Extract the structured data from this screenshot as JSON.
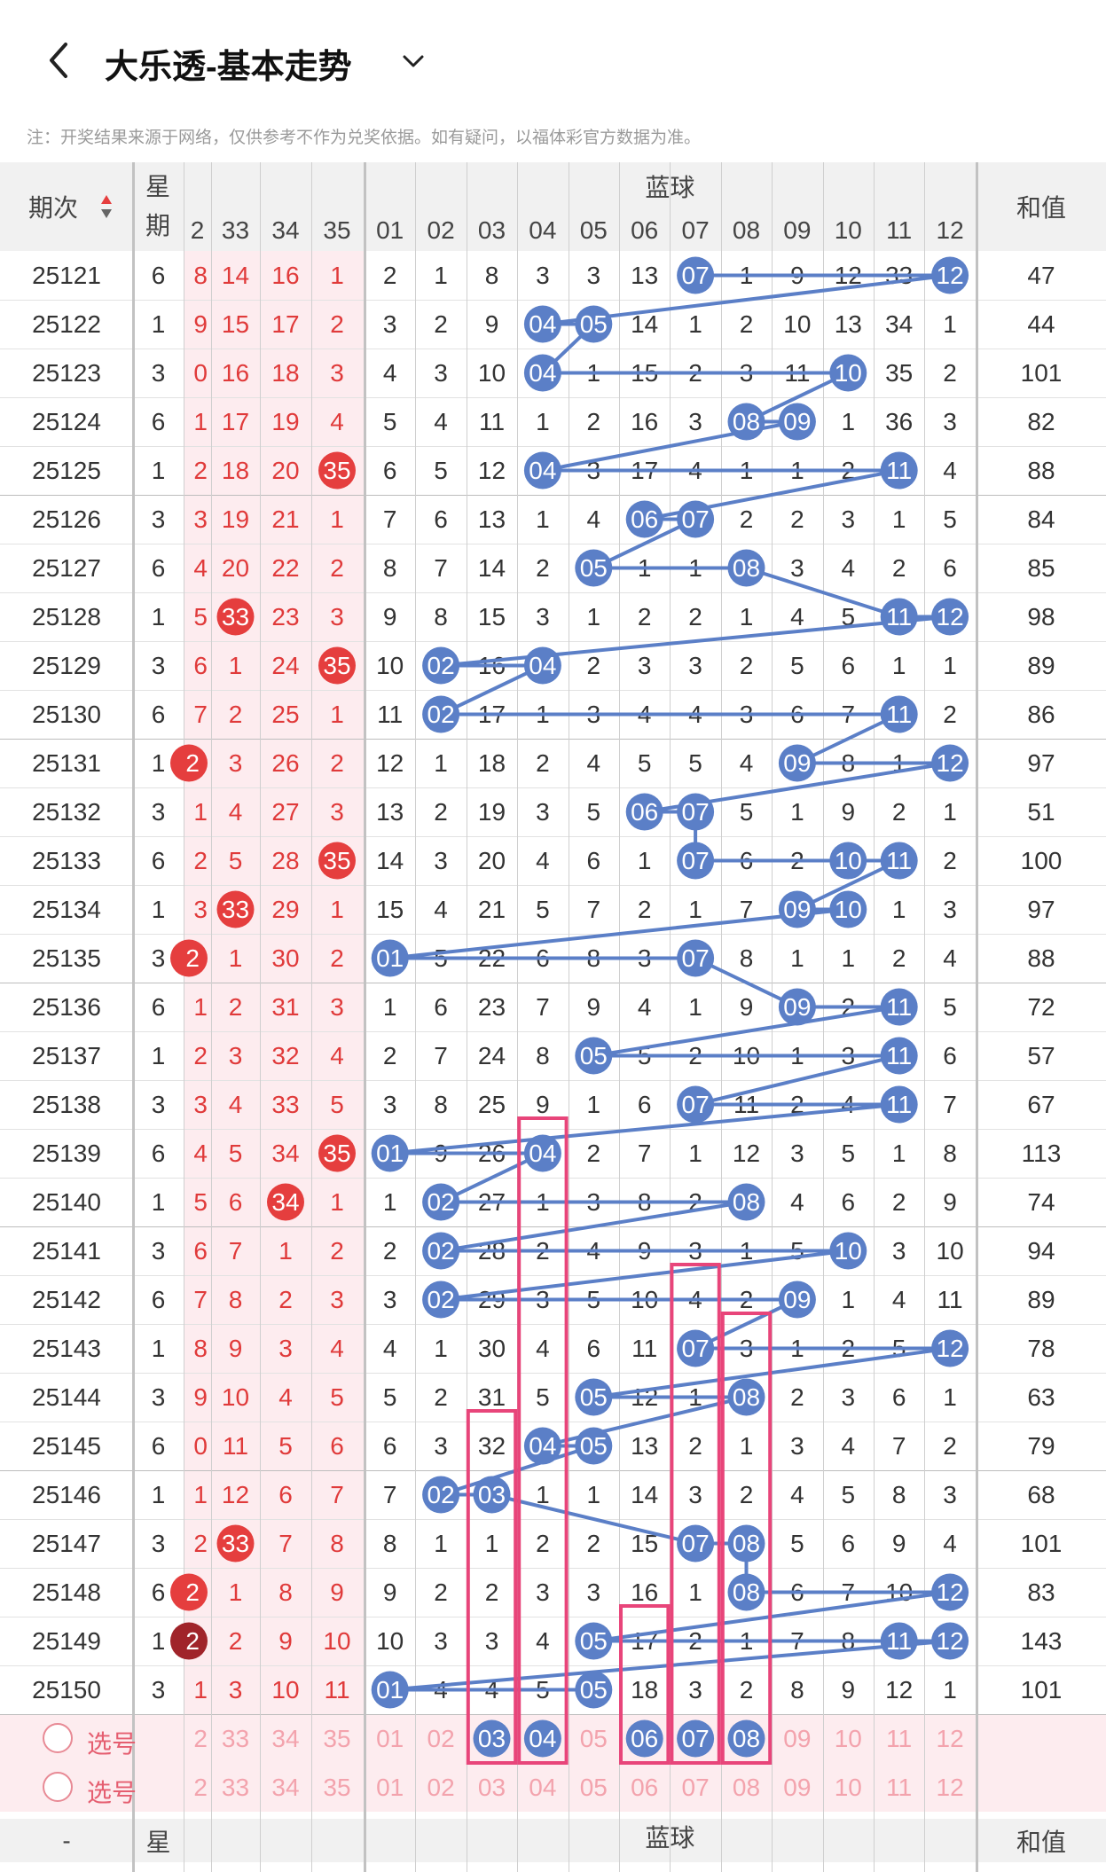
{
  "header": {
    "title": "大乐透-基本走势"
  },
  "note": "注：开奖结果来源于网络，仅供参考不作为兑奖依据。如有疑问，以福体彩官方数据为准。",
  "table": {
    "issue_header": "期次",
    "week_header": "星期",
    "blue_header": "蓝球",
    "sum_header": "和值",
    "front_cols": [
      "2",
      "33",
      "34",
      "35"
    ],
    "blue_cols": [
      "01",
      "02",
      "03",
      "04",
      "05",
      "06",
      "07",
      "08",
      "09",
      "10",
      "11",
      "12"
    ],
    "rows": [
      {
        "issue": "25121",
        "week": "6",
        "front": [
          "8",
          "14",
          "16",
          "1"
        ],
        "blue": [
          "2",
          "1",
          "8",
          "3",
          "3",
          "13",
          "07",
          "1",
          "9",
          "12",
          "33",
          "12"
        ],
        "sum": "47"
      },
      {
        "issue": "25122",
        "week": "1",
        "front": [
          "9",
          "15",
          "17",
          "2"
        ],
        "blue": [
          "3",
          "2",
          "9",
          "04",
          "05",
          "14",
          "1",
          "2",
          "10",
          "13",
          "34",
          "1"
        ],
        "sum": "44"
      },
      {
        "issue": "25123",
        "week": "3",
        "front": [
          "0",
          "16",
          "18",
          "3"
        ],
        "blue": [
          "4",
          "3",
          "10",
          "04",
          "1",
          "15",
          "2",
          "3",
          "11",
          "10",
          "35",
          "2"
        ],
        "sum": "101"
      },
      {
        "issue": "25124",
        "week": "6",
        "front": [
          "1",
          "17",
          "19",
          "4"
        ],
        "blue": [
          "5",
          "4",
          "11",
          "1",
          "2",
          "16",
          "3",
          "08",
          "09",
          "1",
          "36",
          "3"
        ],
        "sum": "82"
      },
      {
        "issue": "25125",
        "week": "1",
        "front": [
          "2",
          "18",
          "20",
          "35"
        ],
        "blue": [
          "6",
          "5",
          "12",
          "04",
          "3",
          "17",
          "4",
          "1",
          "1",
          "2",
          "11",
          "4"
        ],
        "sum": "88"
      },
      {
        "issue": "25126",
        "week": "3",
        "front": [
          "3",
          "19",
          "21",
          "1"
        ],
        "blue": [
          "7",
          "6",
          "13",
          "1",
          "4",
          "06",
          "07",
          "2",
          "2",
          "3",
          "1",
          "5"
        ],
        "sum": "84"
      },
      {
        "issue": "25127",
        "week": "6",
        "front": [
          "4",
          "20",
          "22",
          "2"
        ],
        "blue": [
          "8",
          "7",
          "14",
          "2",
          "05",
          "1",
          "1",
          "08",
          "3",
          "4",
          "2",
          "6"
        ],
        "sum": "85"
      },
      {
        "issue": "25128",
        "week": "1",
        "front": [
          "5",
          "33",
          "23",
          "3"
        ],
        "blue": [
          "9",
          "8",
          "15",
          "3",
          "1",
          "2",
          "2",
          "1",
          "4",
          "5",
          "11",
          "12"
        ],
        "sum": "98"
      },
      {
        "issue": "25129",
        "week": "3",
        "front": [
          "6",
          "1",
          "24",
          "35"
        ],
        "blue": [
          "10",
          "02",
          "16",
          "04",
          "2",
          "3",
          "3",
          "2",
          "5",
          "6",
          "1",
          "1"
        ],
        "sum": "89"
      },
      {
        "issue": "25130",
        "week": "6",
        "front": [
          "7",
          "2",
          "25",
          "1"
        ],
        "blue": [
          "11",
          "02",
          "17",
          "1",
          "3",
          "4",
          "4",
          "3",
          "6",
          "7",
          "11",
          "2"
        ],
        "sum": "86"
      },
      {
        "issue": "25131",
        "week": "1",
        "front": [
          "2",
          "3",
          "26",
          "2"
        ],
        "blue": [
          "12",
          "1",
          "18",
          "2",
          "4",
          "5",
          "5",
          "4",
          "09",
          "8",
          "1",
          "12"
        ],
        "sum": "97"
      },
      {
        "issue": "25132",
        "week": "3",
        "front": [
          "1",
          "4",
          "27",
          "3"
        ],
        "blue": [
          "13",
          "2",
          "19",
          "3",
          "5",
          "06",
          "07",
          "5",
          "1",
          "9",
          "2",
          "1"
        ],
        "sum": "51"
      },
      {
        "issue": "25133",
        "week": "6",
        "front": [
          "2",
          "5",
          "28",
          "35"
        ],
        "blue": [
          "14",
          "3",
          "20",
          "4",
          "6",
          "1",
          "07",
          "6",
          "2",
          "10",
          "11",
          "2"
        ],
        "sum": "100"
      },
      {
        "issue": "25134",
        "week": "1",
        "front": [
          "3",
          "33",
          "29",
          "1"
        ],
        "blue": [
          "15",
          "4",
          "21",
          "5",
          "7",
          "2",
          "1",
          "7",
          "09",
          "10",
          "1",
          "3"
        ],
        "sum": "97"
      },
      {
        "issue": "25135",
        "week": "3",
        "front": [
          "2",
          "1",
          "30",
          "2"
        ],
        "blue": [
          "01",
          "5",
          "22",
          "6",
          "8",
          "3",
          "07",
          "8",
          "1",
          "1",
          "2",
          "4"
        ],
        "sum": "88"
      },
      {
        "issue": "25136",
        "week": "6",
        "front": [
          "1",
          "2",
          "31",
          "3"
        ],
        "blue": [
          "1",
          "6",
          "23",
          "7",
          "9",
          "4",
          "1",
          "9",
          "09",
          "2",
          "11",
          "5"
        ],
        "sum": "72"
      },
      {
        "issue": "25137",
        "week": "1",
        "front": [
          "2",
          "3",
          "32",
          "4"
        ],
        "blue": [
          "2",
          "7",
          "24",
          "8",
          "05",
          "5",
          "2",
          "10",
          "1",
          "3",
          "11",
          "6"
        ],
        "sum": "57"
      },
      {
        "issue": "25138",
        "week": "3",
        "front": [
          "3",
          "4",
          "33",
          "5"
        ],
        "blue": [
          "3",
          "8",
          "25",
          "9",
          "1",
          "6",
          "07",
          "11",
          "2",
          "4",
          "11",
          "7"
        ],
        "sum": "67"
      },
      {
        "issue": "25139",
        "week": "6",
        "front": [
          "4",
          "5",
          "34",
          "35"
        ],
        "blue": [
          "01",
          "9",
          "26",
          "04",
          "2",
          "7",
          "1",
          "12",
          "3",
          "5",
          "1",
          "8"
        ],
        "sum": "113"
      },
      {
        "issue": "25140",
        "week": "1",
        "front": [
          "5",
          "6",
          "34",
          "1"
        ],
        "blue": [
          "1",
          "02",
          "27",
          "1",
          "3",
          "8",
          "2",
          "08",
          "4",
          "6",
          "2",
          "9"
        ],
        "sum": "74"
      },
      {
        "issue": "25141",
        "week": "3",
        "front": [
          "6",
          "7",
          "1",
          "2"
        ],
        "blue": [
          "2",
          "02",
          "28",
          "2",
          "4",
          "9",
          "3",
          "1",
          "5",
          "10",
          "3",
          "10"
        ],
        "sum": "94"
      },
      {
        "issue": "25142",
        "week": "6",
        "front": [
          "7",
          "8",
          "2",
          "3"
        ],
        "blue": [
          "3",
          "02",
          "29",
          "3",
          "5",
          "10",
          "4",
          "2",
          "09",
          "1",
          "4",
          "11"
        ],
        "sum": "89"
      },
      {
        "issue": "25143",
        "week": "1",
        "front": [
          "8",
          "9",
          "3",
          "4"
        ],
        "blue": [
          "4",
          "1",
          "30",
          "4",
          "6",
          "11",
          "07",
          "3",
          "1",
          "2",
          "5",
          "12"
        ],
        "sum": "78"
      },
      {
        "issue": "25144",
        "week": "3",
        "front": [
          "9",
          "10",
          "4",
          "5"
        ],
        "blue": [
          "5",
          "2",
          "31",
          "5",
          "05",
          "12",
          "1",
          "08",
          "2",
          "3",
          "6",
          "1"
        ],
        "sum": "63"
      },
      {
        "issue": "25145",
        "week": "6",
        "front": [
          "0",
          "11",
          "5",
          "6"
        ],
        "blue": [
          "6",
          "3",
          "32",
          "04",
          "05",
          "13",
          "2",
          "1",
          "3",
          "4",
          "7",
          "2"
        ],
        "sum": "79"
      },
      {
        "issue": "25146",
        "week": "1",
        "front": [
          "1",
          "12",
          "6",
          "7"
        ],
        "blue": [
          "7",
          "02",
          "03",
          "1",
          "1",
          "14",
          "3",
          "2",
          "4",
          "5",
          "8",
          "3"
        ],
        "sum": "68"
      },
      {
        "issue": "25147",
        "week": "3",
        "front": [
          "2",
          "33",
          "7",
          "8"
        ],
        "blue": [
          "8",
          "1",
          "1",
          "2",
          "2",
          "15",
          "07",
          "08",
          "5",
          "6",
          "9",
          "4"
        ],
        "sum": "101"
      },
      {
        "issue": "25148",
        "week": "6",
        "front": [
          "2",
          "1",
          "8",
          "9"
        ],
        "blue": [
          "9",
          "2",
          "2",
          "3",
          "3",
          "16",
          "1",
          "08",
          "6",
          "7",
          "10",
          "12"
        ],
        "sum": "83"
      },
      {
        "issue": "25149",
        "week": "1",
        "front": [
          "2",
          "2",
          "9",
          "10"
        ],
        "blue": [
          "10",
          "3",
          "3",
          "4",
          "05",
          "17",
          "2",
          "1",
          "7",
          "8",
          "11",
          "12"
        ],
        "sum": "143"
      },
      {
        "issue": "25150",
        "week": "3",
        "front": [
          "1",
          "3",
          "10",
          "11"
        ],
        "blue": [
          "01",
          "4",
          "4",
          "5",
          "05",
          "18",
          "3",
          "2",
          "8",
          "9",
          "12",
          "1"
        ],
        "sum": "101"
      }
    ],
    "select_rows": [
      {
        "label": "选号",
        "front": [
          "2",
          "33",
          "34",
          "35"
        ],
        "blue": [
          "01",
          "02",
          "03",
          "04",
          "05",
          "06",
          "07",
          "08",
          "09",
          "10",
          "11",
          "12"
        ],
        "selected": [
          "03",
          "04",
          "06",
          "07",
          "08"
        ]
      },
      {
        "label": "选号",
        "front": [
          "2",
          "33",
          "34",
          "35"
        ],
        "blue": [
          "01",
          "02",
          "03",
          "04",
          "05",
          "06",
          "07",
          "08",
          "09",
          "10",
          "11",
          "12"
        ],
        "selected": []
      }
    ],
    "footer": {
      "issue": "-",
      "week": "星",
      "blue": "蓝球",
      "sum": "和值"
    }
  },
  "colors": {
    "blue_ball": "#5b7fc7",
    "red_ball": "#e53e3e",
    "dark_red_ball": "#a0242a",
    "pink_box": "#e8457a",
    "red_text": "#e03a3a",
    "pink_text": "#f3a3ad",
    "header_bg": "#f1f1f1",
    "pink_bg": "#fdecef"
  }
}
